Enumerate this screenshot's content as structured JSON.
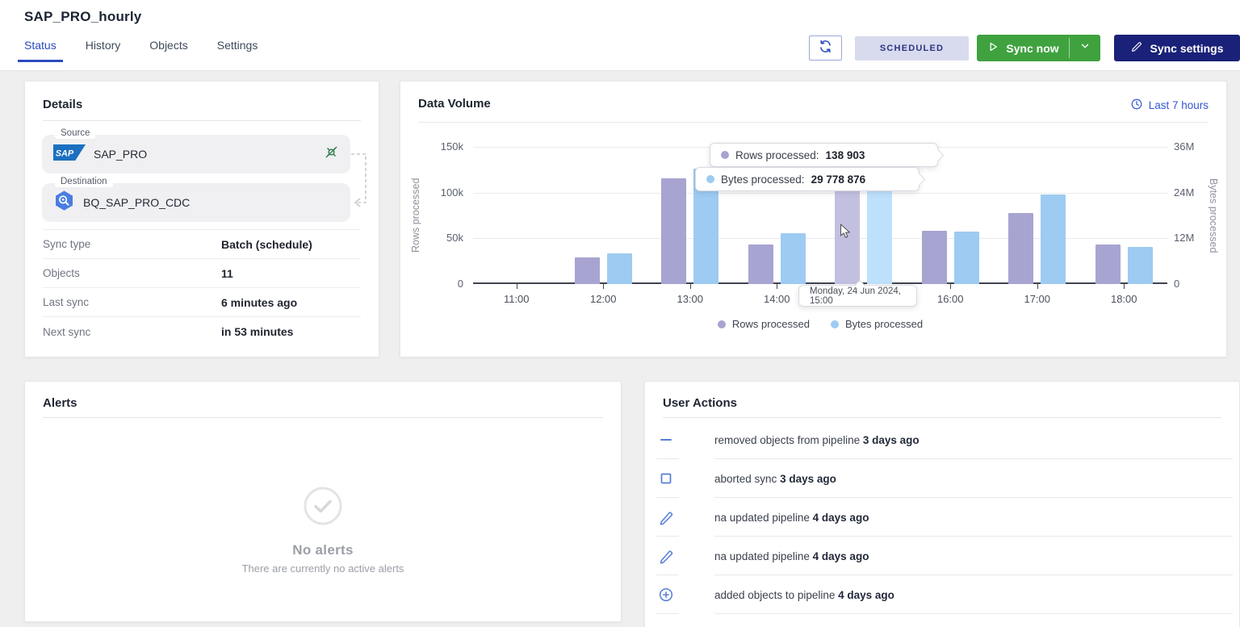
{
  "page": {
    "title": "SAP_PRO_hourly"
  },
  "tabs": [
    {
      "label": "Status",
      "active": true
    },
    {
      "label": "History",
      "active": false
    },
    {
      "label": "Objects",
      "active": false
    },
    {
      "label": "Settings",
      "active": false
    }
  ],
  "toolbar": {
    "status_badge": "SCHEDULED",
    "sync_now_label": "Sync now",
    "sync_settings_label": "Sync settings"
  },
  "details": {
    "title": "Details",
    "source_label": "Source",
    "source_name": "SAP_PRO",
    "destination_label": "Destination",
    "destination_name": "BQ_SAP_PRO_CDC",
    "rows": [
      {
        "label": "Sync type",
        "value": "Batch (schedule)"
      },
      {
        "label": "Objects",
        "value": "11"
      },
      {
        "label": "Last sync",
        "value": "6 minutes ago"
      },
      {
        "label": "Next sync",
        "value": "in 53 minutes"
      }
    ]
  },
  "chart": {
    "title": "Data Volume",
    "range_label": "Last 7 hours",
    "tooltip": {
      "rows_label": "Rows processed:",
      "rows_value": "138 903",
      "bytes_label": "Bytes processed:",
      "bytes_value": "29 778 876",
      "date": "Monday, 24 Jun 2024, 15:00"
    }
  },
  "chart_data": {
    "type": "bar",
    "categories": [
      "11:00",
      "12:00",
      "13:00",
      "14:00",
      "15:00",
      "16:00",
      "17:00",
      "18:00"
    ],
    "series": [
      {
        "name": "Rows processed",
        "axis": "left",
        "color": "#a7a4d1",
        "highlight_color": "#c2c0e0",
        "values": [
          0,
          29000,
          116000,
          43000,
          138903,
          58000,
          78000,
          43000
        ]
      },
      {
        "name": "Bytes processed",
        "axis": "right",
        "color": "#9dcbf2",
        "highlight_color": "#bde1fa",
        "values": [
          0,
          8100000,
          30200000,
          13300000,
          29778876,
          13800000,
          23500000,
          9800000
        ]
      }
    ],
    "highlight_index": 4,
    "left_axis": {
      "label": "Rows processed",
      "max": 150000,
      "ticks": [
        "0",
        "50k",
        "100k",
        "150k"
      ]
    },
    "right_axis": {
      "label": "Bytes processed",
      "max": 36000000,
      "ticks": [
        "0",
        "12M",
        "24M",
        "36M"
      ]
    },
    "grid": true,
    "legend_position": "bottom",
    "title": "Data Volume"
  },
  "alerts": {
    "title": "Alerts",
    "empty_title": "No alerts",
    "empty_subtitle": "There are currently no active alerts"
  },
  "user_actions": {
    "title": "User Actions",
    "items": [
      {
        "icon": "minus-icon",
        "user_fragment": "",
        "action": "removed objects from pipeline",
        "ago": "3 days ago"
      },
      {
        "icon": "stop-square-icon",
        "user_fragment": "",
        "action": "aborted sync",
        "ago": "3 days ago"
      },
      {
        "icon": "pencil-icon",
        "user_fragment": "na",
        "action": "updated pipeline",
        "ago": "4 days ago"
      },
      {
        "icon": "pencil-icon",
        "user_fragment": "na",
        "action": "updated pipeline",
        "ago": "4 days ago"
      },
      {
        "icon": "circle-plus-icon",
        "user_fragment": "",
        "action": "added objects to pipeline",
        "ago": "4 days ago"
      }
    ]
  },
  "colors": {
    "accent_green": "#3fa23f",
    "accent_navy": "#1a2178",
    "link_blue": "#3457d1",
    "badge_bg": "#d8daee",
    "badge_text": "#2c3480",
    "action_icon_blue": "#567dd3",
    "connection_ok_green": "#2e7d49"
  }
}
